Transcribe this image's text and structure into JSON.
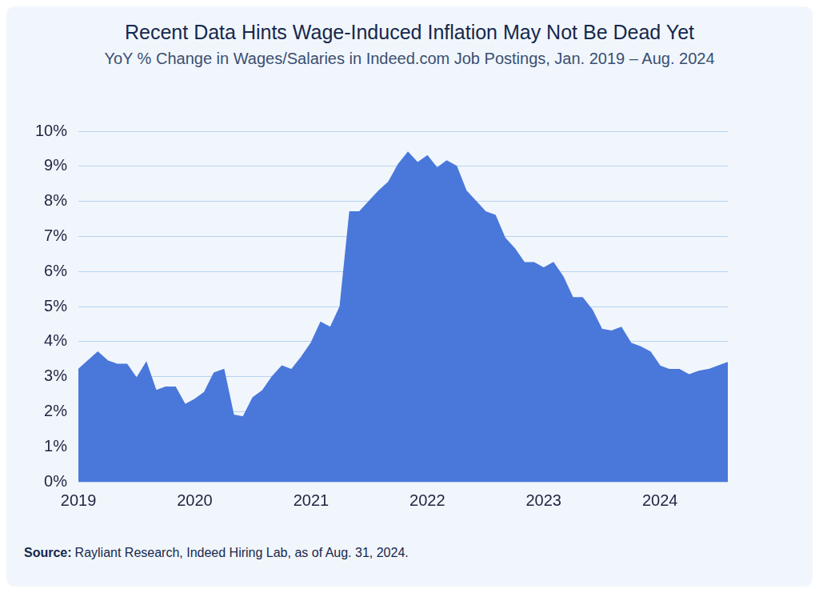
{
  "chart_data": {
    "type": "area",
    "title": "Recent Data Hints Wage-Induced Inflation May Not Be Dead Yet",
    "subtitle": "YoY % Change in Wages/Salaries in Indeed.com Job Postings, Jan. 2019 – Aug. 2024",
    "source": {
      "label": "Source:",
      "text": "Rayliant Research, Indeed Hiring Lab, as of Aug. 31, 2024."
    },
    "categories": [
      "2019",
      null,
      null,
      null,
      null,
      null,
      null,
      null,
      null,
      null,
      null,
      null,
      "2020",
      null,
      null,
      null,
      null,
      null,
      null,
      null,
      null,
      null,
      null,
      null,
      "2021",
      null,
      null,
      null,
      null,
      null,
      null,
      null,
      null,
      null,
      null,
      null,
      "2022",
      null,
      null,
      null,
      null,
      null,
      null,
      null,
      null,
      null,
      null,
      null,
      "2023",
      null,
      null,
      null,
      null,
      null,
      null,
      null,
      null,
      null,
      null,
      null,
      "2024",
      null,
      null,
      null,
      null,
      null,
      null,
      null
    ],
    "values": [
      3.2,
      3.45,
      3.7,
      3.45,
      3.35,
      3.35,
      2.95,
      3.4,
      2.6,
      2.7,
      2.7,
      2.2,
      2.35,
      2.55,
      3.1,
      3.2,
      1.9,
      1.85,
      2.4,
      2.6,
      3.0,
      3.3,
      3.2,
      3.55,
      3.95,
      4.55,
      4.4,
      5.0,
      7.7,
      7.7,
      8.0,
      8.3,
      8.55,
      9.05,
      9.4,
      9.1,
      9.3,
      8.95,
      9.15,
      9.0,
      8.3,
      8.0,
      7.7,
      7.6,
      6.95,
      6.65,
      6.25,
      6.25,
      6.1,
      6.25,
      5.85,
      5.25,
      5.25,
      4.9,
      4.35,
      4.3,
      4.4,
      3.95,
      3.85,
      3.7,
      3.3,
      3.2,
      3.2,
      3.05,
      3.15,
      3.2,
      3.3,
      3.4
    ],
    "color": "#4a78da",
    "ylim": [
      0,
      10
    ],
    "yticks": [
      {
        "value": 0,
        "label": "0%"
      },
      {
        "value": 1,
        "label": "1%"
      },
      {
        "value": 2,
        "label": "2%"
      },
      {
        "value": 3,
        "label": "3%"
      },
      {
        "value": 4,
        "label": "4%"
      },
      {
        "value": 5,
        "label": "5%"
      },
      {
        "value": 6,
        "label": "6%"
      },
      {
        "value": 7,
        "label": "7%"
      },
      {
        "value": 8,
        "label": "8%"
      },
      {
        "value": 9,
        "label": "9%"
      },
      {
        "value": 10,
        "label": "10%"
      }
    ],
    "grid": true
  }
}
